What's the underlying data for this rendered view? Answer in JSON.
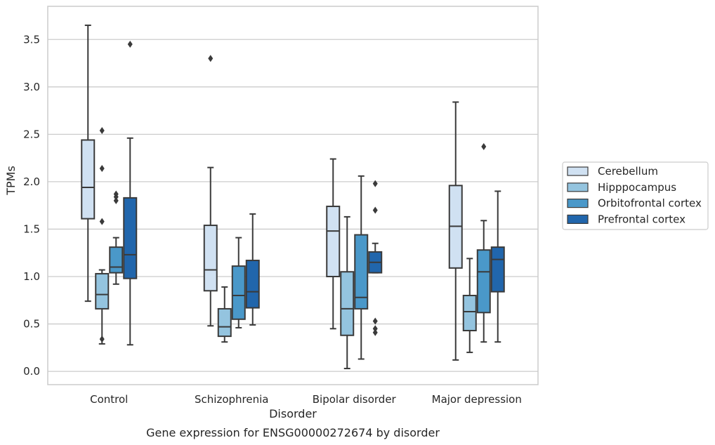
{
  "colors": {
    "grid": "#cccccc",
    "frame": "#cccccc",
    "box_edge": "#3a3a3a",
    "series": [
      "#d0e1f2",
      "#94c4df",
      "#4a98c9",
      "#2166ac"
    ]
  },
  "chart_data": {
    "type": "box",
    "title": "",
    "caption": "Gene expression for ENSG00000272674 by disorder",
    "xlabel": "Disorder",
    "ylabel": "TPMs",
    "ylim": [
      -0.14,
      3.85
    ],
    "yticks": [
      0.0,
      0.5,
      1.0,
      1.5,
      2.0,
      2.5,
      3.0,
      3.5
    ],
    "ytick_labels": [
      "0.0",
      "0.5",
      "1.0",
      "1.5",
      "2.0",
      "2.5",
      "3.0",
      "3.5"
    ],
    "grid": "horizontal",
    "legend_position": "right",
    "categories": [
      "Control",
      "Schizophrenia",
      "Bipolar disorder",
      "Major depression"
    ],
    "series": [
      {
        "name": "Cerebellum",
        "boxes": [
          {
            "whisker_low": 0.74,
            "q1": 1.61,
            "median": 1.94,
            "q3": 2.44,
            "whisker_high": 3.65,
            "outliers": []
          },
          {
            "whisker_low": 0.48,
            "q1": 0.85,
            "median": 1.07,
            "q3": 1.54,
            "whisker_high": 2.15,
            "outliers": [
              3.3
            ]
          },
          {
            "whisker_low": 0.45,
            "q1": 1.0,
            "median": 1.48,
            "q3": 1.74,
            "whisker_high": 2.24,
            "outliers": []
          },
          {
            "whisker_low": 0.12,
            "q1": 1.09,
            "median": 1.53,
            "q3": 1.96,
            "whisker_high": 2.84,
            "outliers": []
          }
        ]
      },
      {
        "name": "Hipppocampus",
        "boxes": [
          {
            "whisker_low": 0.29,
            "q1": 0.66,
            "median": 0.81,
            "q3": 1.03,
            "whisker_high": 1.07,
            "outliers": [
              2.54,
              2.14,
              1.58,
              0.34
            ]
          },
          {
            "whisker_low": 0.31,
            "q1": 0.37,
            "median": 0.47,
            "q3": 0.66,
            "whisker_high": 0.89,
            "outliers": []
          },
          {
            "whisker_low": 0.03,
            "q1": 0.38,
            "median": 0.66,
            "q3": 1.05,
            "whisker_high": 1.63,
            "outliers": []
          },
          {
            "whisker_low": 0.2,
            "q1": 0.43,
            "median": 0.63,
            "q3": 0.8,
            "whisker_high": 1.19,
            "outliers": []
          }
        ]
      },
      {
        "name": "Orbitofrontal cortex",
        "boxes": [
          {
            "whisker_low": 0.92,
            "q1": 1.04,
            "median": 1.1,
            "q3": 1.31,
            "whisker_high": 1.41,
            "outliers": [
              1.87,
              1.84,
              1.8
            ]
          },
          {
            "whisker_low": 0.46,
            "q1": 0.55,
            "median": 0.8,
            "q3": 1.11,
            "whisker_high": 1.41,
            "outliers": []
          },
          {
            "whisker_low": 0.13,
            "q1": 0.66,
            "median": 0.78,
            "q3": 1.44,
            "whisker_high": 2.06,
            "outliers": []
          },
          {
            "whisker_low": 0.31,
            "q1": 0.62,
            "median": 1.05,
            "q3": 1.28,
            "whisker_high": 1.59,
            "outliers": [
              2.37
            ]
          }
        ]
      },
      {
        "name": "Prefrontal cortex",
        "boxes": [
          {
            "whisker_low": 0.28,
            "q1": 0.98,
            "median": 1.23,
            "q3": 1.83,
            "whisker_high": 2.46,
            "outliers": [
              3.45
            ]
          },
          {
            "whisker_low": 0.49,
            "q1": 0.67,
            "median": 0.84,
            "q3": 1.17,
            "whisker_high": 1.66,
            "outliers": []
          },
          {
            "whisker_low": 1.04,
            "q1": 1.04,
            "median": 1.15,
            "q3": 1.26,
            "whisker_high": 1.35,
            "outliers": [
              1.98,
              1.7,
              0.53,
              0.45,
              0.41
            ]
          },
          {
            "whisker_low": 0.31,
            "q1": 0.84,
            "median": 1.18,
            "q3": 1.31,
            "whisker_high": 1.9,
            "outliers": []
          }
        ]
      }
    ]
  }
}
